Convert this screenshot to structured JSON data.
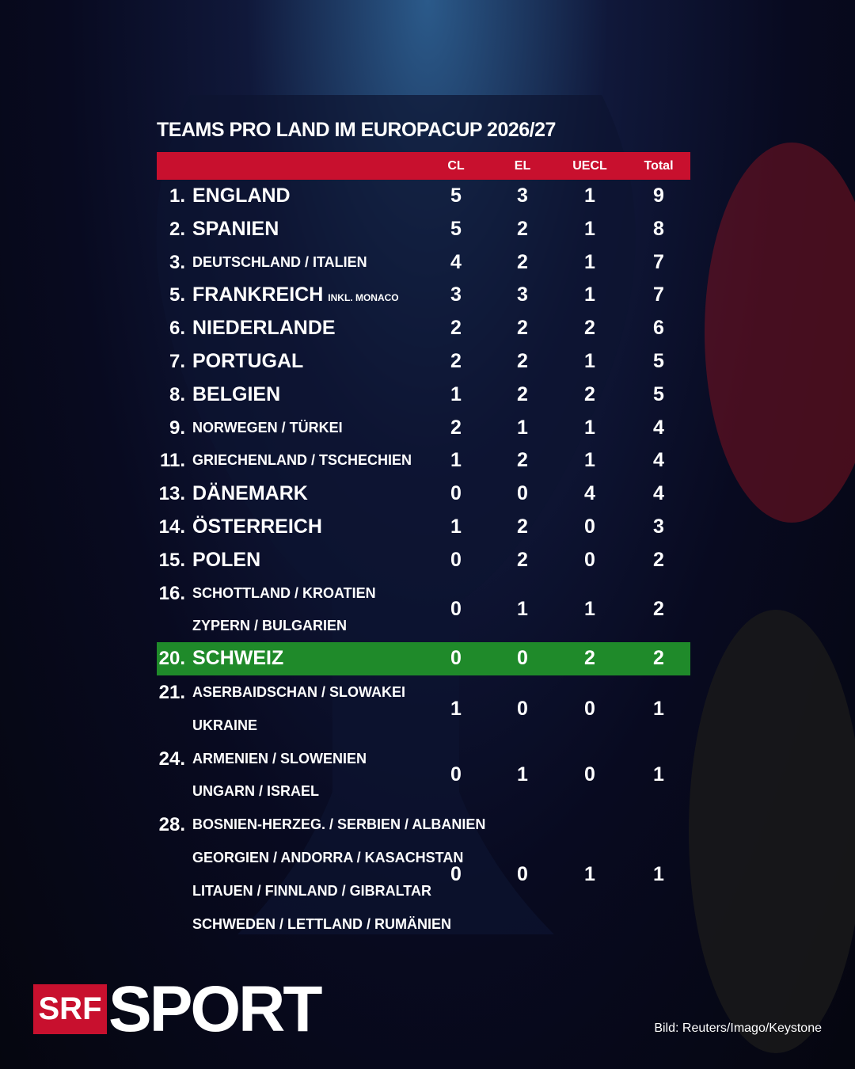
{
  "header": {
    "title": "TEAMS PRO LAND IM EUROPACUP 2026/27"
  },
  "table": {
    "columns": [
      "CL",
      "EL",
      "UECL",
      "Total"
    ],
    "highlight_color": "#1f8a2a",
    "header_color": "#c8102e",
    "rows": [
      {
        "rank": "1.",
        "names": [
          "ENGLAND"
        ],
        "cl": 5,
        "el": 3,
        "uecl": 1,
        "total": 9
      },
      {
        "rank": "2.",
        "names": [
          "SPANIEN"
        ],
        "cl": 5,
        "el": 2,
        "uecl": 1,
        "total": 8
      },
      {
        "rank": "3.",
        "names": [
          "DEUTSCHLAND / ITALIEN"
        ],
        "cl": 4,
        "el": 2,
        "uecl": 1,
        "total": 7
      },
      {
        "rank": "5.",
        "names": [
          "FRANKREICH"
        ],
        "note": "INKL. MONACO",
        "cl": 3,
        "el": 3,
        "uecl": 1,
        "total": 7
      },
      {
        "rank": "6.",
        "names": [
          "NIEDERLANDE"
        ],
        "cl": 2,
        "el": 2,
        "uecl": 2,
        "total": 6
      },
      {
        "rank": "7.",
        "names": [
          "PORTUGAL"
        ],
        "cl": 2,
        "el": 2,
        "uecl": 1,
        "total": 5
      },
      {
        "rank": "8.",
        "names": [
          "BELGIEN"
        ],
        "cl": 1,
        "el": 2,
        "uecl": 2,
        "total": 5
      },
      {
        "rank": "9.",
        "names": [
          "NORWEGEN / TÜRKEI"
        ],
        "cl": 2,
        "el": 1,
        "uecl": 1,
        "total": 4
      },
      {
        "rank": "11.",
        "names": [
          "GRIECHENLAND / TSCHECHIEN"
        ],
        "cl": 1,
        "el": 2,
        "uecl": 1,
        "total": 4
      },
      {
        "rank": "13.",
        "names": [
          "DÄNEMARK"
        ],
        "cl": 0,
        "el": 0,
        "uecl": 4,
        "total": 4
      },
      {
        "rank": "14.",
        "names": [
          "ÖSTERREICH"
        ],
        "cl": 1,
        "el": 2,
        "uecl": 0,
        "total": 3
      },
      {
        "rank": "15.",
        "names": [
          "POLEN"
        ],
        "cl": 0,
        "el": 2,
        "uecl": 0,
        "total": 2
      },
      {
        "rank": "16.",
        "names": [
          "SCHOTTLAND / KROATIEN",
          "ZYPERN / BULGARIEN"
        ],
        "cl": 0,
        "el": 1,
        "uecl": 1,
        "total": 2
      },
      {
        "rank": "20.",
        "names": [
          "SCHWEIZ"
        ],
        "cl": 0,
        "el": 0,
        "uecl": 2,
        "total": 2,
        "highlight": true
      },
      {
        "rank": "21.",
        "names": [
          "ASERBAIDSCHAN / SLOWAKEI",
          "UKRAINE"
        ],
        "cl": 1,
        "el": 0,
        "uecl": 0,
        "total": 1
      },
      {
        "rank": "24.",
        "names": [
          "ARMENIEN / SLOWENIEN",
          "UNGARN / ISRAEL"
        ],
        "cl": 0,
        "el": 1,
        "uecl": 0,
        "total": 1
      },
      {
        "rank": "28.",
        "names": [
          "BOSNIEN-HERZEG. / SERBIEN / ALBANIEN",
          "GEORGIEN / ANDORRA / KASACHSTAN",
          "LITAUEN / FINNLAND / GIBRALTAR",
          "SCHWEDEN / LETTLAND / RUMÄNIEN"
        ],
        "cl": 0,
        "el": 0,
        "uecl": 1,
        "total": 1
      }
    ]
  },
  "footer": {
    "logo_srf": "SRF",
    "logo_sport": "SPORT",
    "credit": "Bild: Reuters/Imago/Keystone"
  }
}
